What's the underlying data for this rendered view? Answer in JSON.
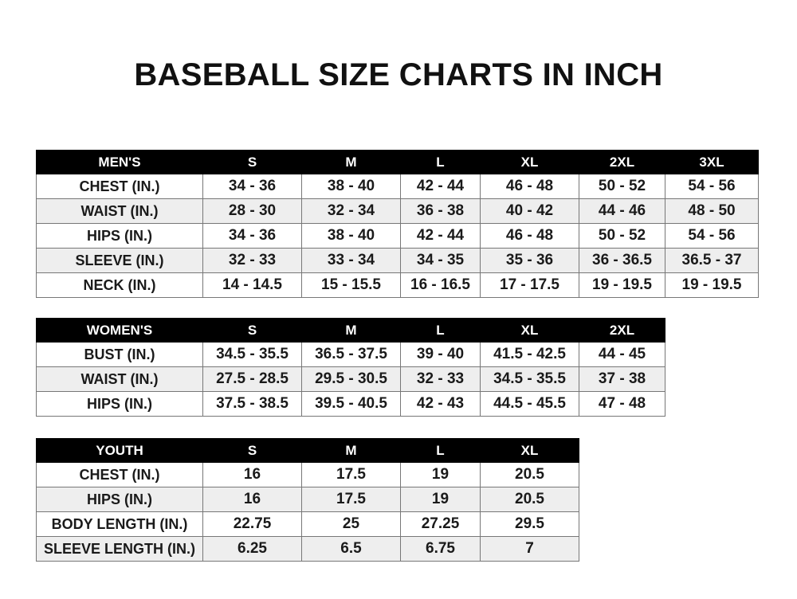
{
  "title": "BASEBALL SIZE CHARTS IN INCH",
  "colors": {
    "header_bg": "#000000",
    "header_text": "#ffffff",
    "alt_row": "#eeeeee"
  },
  "men": {
    "headers": [
      "MEN'S",
      "S",
      "M",
      "L",
      "XL",
      "2XL",
      "3XL"
    ],
    "rows": [
      [
        "CHEST (IN.)",
        "34 - 36",
        "38 - 40",
        "42 - 44",
        "46 - 48",
        "50 - 52",
        "54 - 56"
      ],
      [
        "WAIST (IN.)",
        "28 - 30",
        "32 - 34",
        "36 - 38",
        "40 - 42",
        "44 - 46",
        "48 - 50"
      ],
      [
        "HIPS (IN.)",
        "34 - 36",
        "38 - 40",
        "42 - 44",
        "46 - 48",
        "50 - 52",
        "54 - 56"
      ],
      [
        "SLEEVE (IN.)",
        "32 - 33",
        "33 - 34",
        "34 - 35",
        "35 - 36",
        "36 - 36.5",
        "36.5 - 37"
      ],
      [
        "NECK (IN.)",
        "14 - 14.5",
        "15 - 15.5",
        "16 - 16.5",
        "17 - 17.5",
        "19 - 19.5",
        "19 - 19.5"
      ]
    ]
  },
  "women": {
    "headers": [
      "WOMEN'S",
      "S",
      "M",
      "L",
      "XL",
      "2XL"
    ],
    "rows": [
      [
        "BUST (IN.)",
        "34.5 - 35.5",
        "36.5 - 37.5",
        "39 - 40",
        "41.5 - 42.5",
        "44 - 45"
      ],
      [
        "WAIST (IN.)",
        "27.5 - 28.5",
        "29.5 - 30.5",
        "32 - 33",
        "34.5 - 35.5",
        "37 - 38"
      ],
      [
        "HIPS (IN.)",
        "37.5 - 38.5",
        "39.5 - 40.5",
        "42 - 43",
        "44.5 - 45.5",
        "47 - 48"
      ]
    ]
  },
  "youth": {
    "headers": [
      "YOUTH",
      "S",
      "M",
      "L",
      "XL"
    ],
    "rows": [
      [
        "CHEST (IN.)",
        "16",
        "17.5",
        "19",
        "20.5"
      ],
      [
        "HIPS (IN.)",
        "16",
        "17.5",
        "19",
        "20.5"
      ],
      [
        "BODY LENGTH (IN.)",
        "22.75",
        "25",
        "27.25",
        "29.5"
      ],
      [
        "SLEEVE LENGTH (IN.)",
        "6.25",
        "6.5",
        "6.75",
        "7"
      ]
    ]
  }
}
